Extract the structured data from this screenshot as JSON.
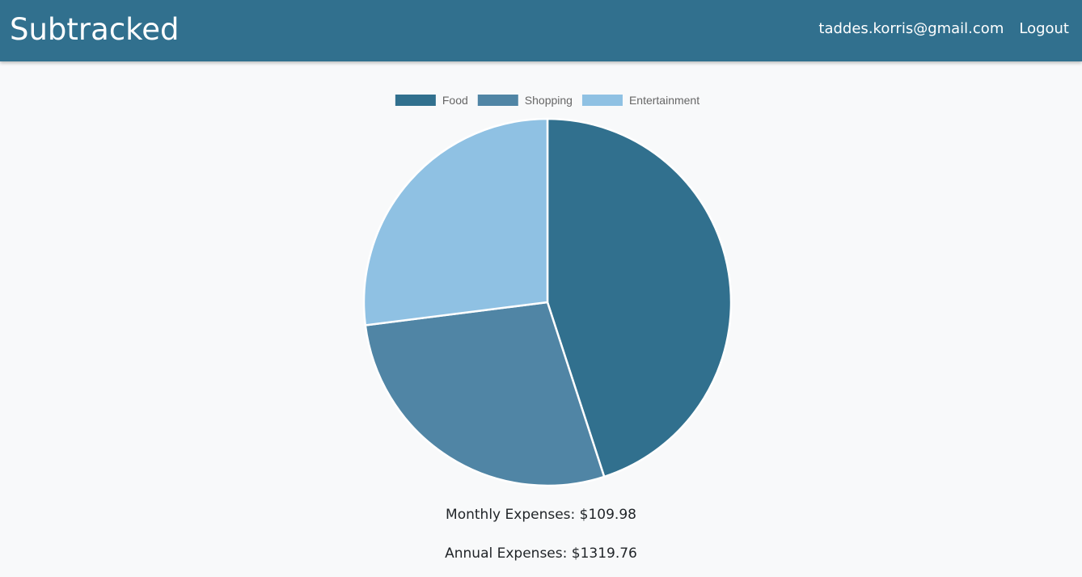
{
  "navbar": {
    "brand": "Subtracked",
    "user_email": "taddes.korris@gmail.com",
    "logout_label": "Logout",
    "background_color": "#31708e"
  },
  "chart_data": {
    "type": "pie",
    "categories": [
      "Food",
      "Shopping",
      "Entertainment"
    ],
    "values": [
      45,
      28,
      27
    ],
    "colors": [
      "#31708e",
      "#5085a5",
      "#8fc1e3"
    ],
    "legend_position": "top"
  },
  "summary": {
    "monthly": "Monthly Expenses: $109.98",
    "annual": "Annual Expenses: $1319.76"
  }
}
